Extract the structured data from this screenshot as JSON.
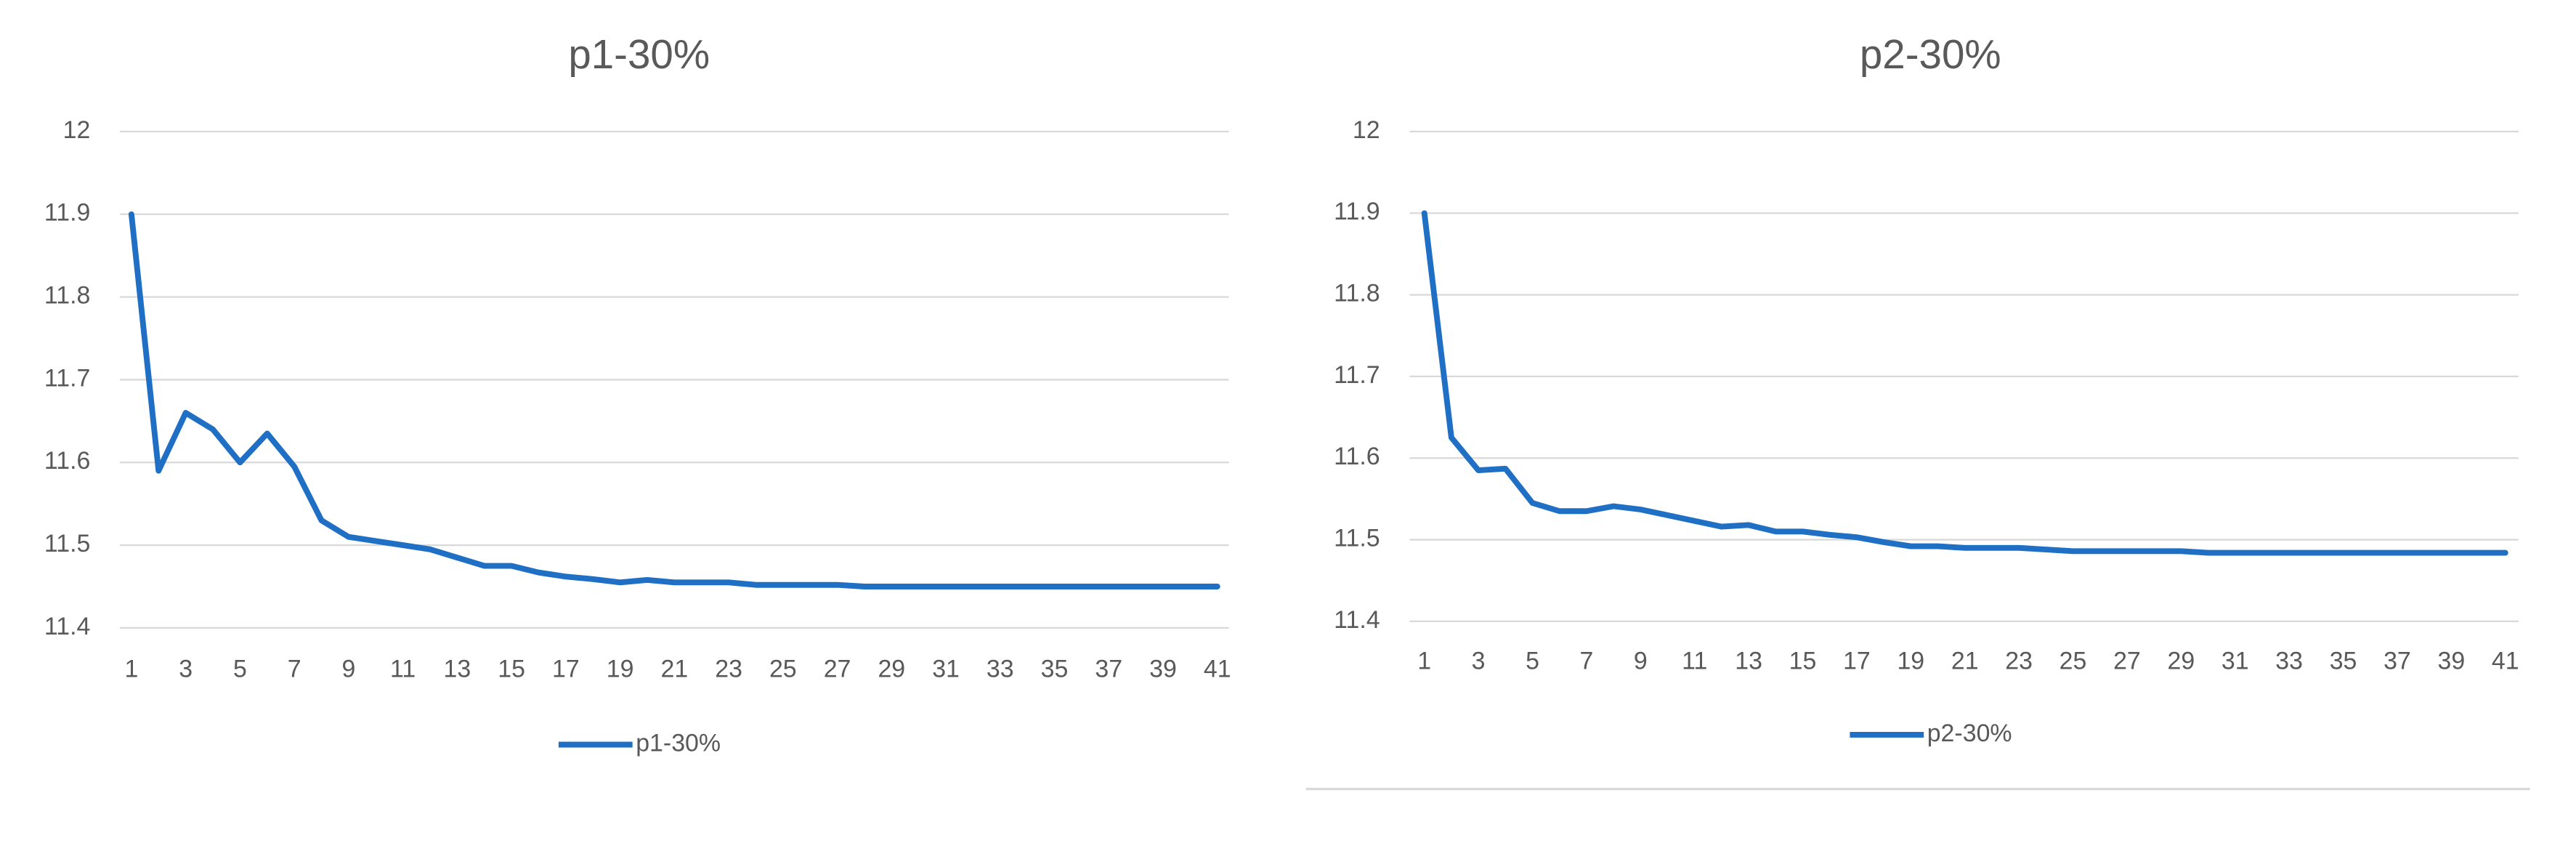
{
  "chart_data": [
    {
      "type": "line",
      "title": "p1-30%",
      "x": [
        1,
        2,
        3,
        4,
        5,
        6,
        7,
        8,
        9,
        10,
        11,
        12,
        13,
        14,
        15,
        16,
        17,
        18,
        19,
        20,
        21,
        22,
        23,
        24,
        25,
        26,
        27,
        28,
        29,
        30,
        31,
        32,
        33,
        34,
        35,
        36,
        37,
        38,
        39,
        40,
        41
      ],
      "series": [
        {
          "name": "p1-30%",
          "color": "#1f6fc5",
          "values": [
            11.9,
            11.59,
            11.66,
            11.64,
            11.6,
            11.635,
            11.595,
            11.53,
            11.51,
            11.505,
            11.5,
            11.495,
            11.485,
            11.475,
            11.475,
            11.467,
            11.462,
            11.459,
            11.455,
            11.458,
            11.455,
            11.455,
            11.455,
            11.452,
            11.452,
            11.452,
            11.452,
            11.45,
            11.45,
            11.45,
            11.45,
            11.45,
            11.45,
            11.45,
            11.45,
            11.45,
            11.45,
            11.45,
            11.45,
            11.45,
            11.45
          ]
        }
      ],
      "xlim": [
        1,
        41
      ],
      "xticks": [
        1,
        3,
        5,
        7,
        9,
        11,
        13,
        15,
        17,
        19,
        21,
        23,
        25,
        27,
        29,
        31,
        33,
        35,
        37,
        39,
        41
      ],
      "ylim": [
        11.4,
        12
      ],
      "yticks": [
        11.4,
        11.5,
        11.6,
        11.7,
        11.8,
        11.9,
        12
      ],
      "grid": true,
      "legend": "bottom"
    },
    {
      "type": "line",
      "title": "p2-30%",
      "x": [
        1,
        2,
        3,
        4,
        5,
        6,
        7,
        8,
        9,
        10,
        11,
        12,
        13,
        14,
        15,
        16,
        17,
        18,
        19,
        20,
        21,
        22,
        23,
        24,
        25,
        26,
        27,
        28,
        29,
        30,
        31,
        32,
        33,
        34,
        35,
        36,
        37,
        38,
        39,
        40,
        41
      ],
      "series": [
        {
          "name": "p2-30%",
          "color": "#1f6fc5",
          "values": [
            11.9,
            11.625,
            11.585,
            11.587,
            11.545,
            11.535,
            11.535,
            11.541,
            11.537,
            11.53,
            11.523,
            11.516,
            11.518,
            11.51,
            11.51,
            11.506,
            11.503,
            11.497,
            11.492,
            11.492,
            11.49,
            11.49,
            11.49,
            11.488,
            11.486,
            11.486,
            11.486,
            11.486,
            11.486,
            11.484,
            11.484,
            11.484,
            11.484,
            11.484,
            11.484,
            11.484,
            11.484,
            11.484,
            11.484,
            11.484,
            11.484
          ]
        }
      ],
      "xlim": [
        1,
        41
      ],
      "xticks": [
        1,
        3,
        5,
        7,
        9,
        11,
        13,
        15,
        17,
        19,
        21,
        23,
        25,
        27,
        29,
        31,
        33,
        35,
        37,
        39,
        41
      ],
      "ylim": [
        11.4,
        12
      ],
      "yticks": [
        11.4,
        11.5,
        11.6,
        11.7,
        11.8,
        11.9,
        12
      ],
      "grid": true,
      "legend": "bottom"
    }
  ]
}
